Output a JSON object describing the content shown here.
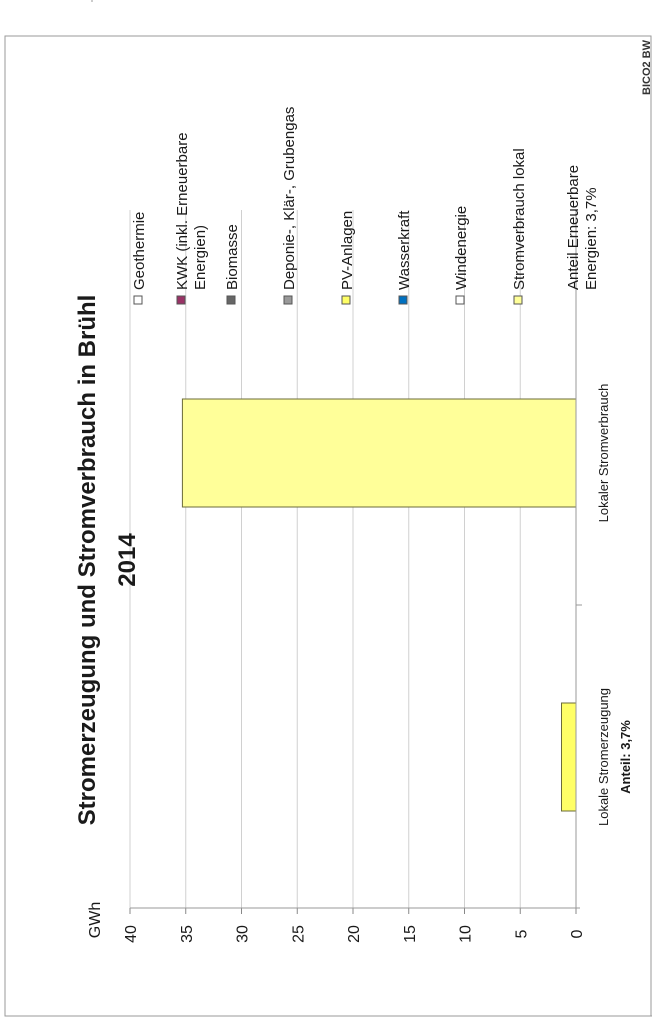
{
  "chart_data": {
    "type": "bar",
    "orientation": "vertical (page rotated 90° counter-clockwise)",
    "title": "Stromerzeugung und Stromverbrauch in Brühl",
    "subtitle": "2014",
    "ylabel": "GWh",
    "ylim": [
      0,
      40
    ],
    "y_ticks": [
      "0",
      "5",
      "10",
      "15",
      "20",
      "25",
      "30",
      "35",
      "40"
    ],
    "categories": [
      {
        "label": "Lokale Stromerzeugung",
        "label2": "Anteil: 3,7%"
      },
      {
        "label": "Lokaler Stromverbrauch",
        "label2": ""
      }
    ],
    "series": [
      {
        "name": "PV-Anlagen",
        "color": "#ffff66",
        "values": [
          1.3,
          0
        ]
      },
      {
        "name": "Stromverbrauch lokal",
        "color": "#ffff99",
        "values": [
          0,
          35.3
        ]
      }
    ],
    "grid": true,
    "legend_position": "right",
    "legend": [
      {
        "label": "Geothermie",
        "color": "#ffffff"
      },
      {
        "label": "KWK (inkl. Erneuerbare",
        "label2": "Energien)",
        "color": "#993366"
      },
      {
        "label": "Biomasse",
        "color": "#666666"
      },
      {
        "label": "Deponie-, Klär-, Grubengas",
        "color": "#999999"
      },
      {
        "label": "PV-Anlagen",
        "color": "#ffff66"
      },
      {
        "label": "Wasserkraft",
        "color": "#0070c0"
      },
      {
        "label": "Windenergie",
        "color": "#ffffff"
      },
      {
        "label": "Stromverbrauch lokal",
        "color": "#ffff99"
      },
      {
        "label": "Anteil Erneuerbare",
        "label2": "Energien: 3,7%",
        "color": ""
      }
    ],
    "source": "BICO2 BW"
  }
}
